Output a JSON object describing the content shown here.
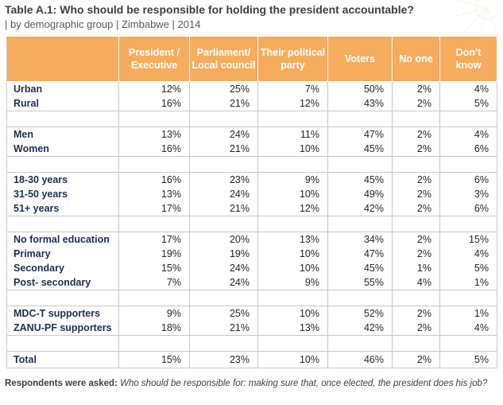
{
  "title": "Table A.1: Who should be responsible for holding the president accountable?",
  "subtitle": "| by demographic group | Zimbabwe | 2014",
  "headers": [
    "",
    "President / Executive",
    "Parliament/ Local council",
    "Their political party",
    "Voters",
    "No one",
    "Don’t know"
  ],
  "groups": [
    [
      {
        "label": "Urban",
        "values": [
          "12%",
          "25%",
          "7%",
          "50%",
          "2%",
          "4%"
        ]
      },
      {
        "label": "Rural",
        "values": [
          "16%",
          "21%",
          "12%",
          "43%",
          "2%",
          "5%"
        ]
      }
    ],
    [
      {
        "label": "Men",
        "values": [
          "13%",
          "24%",
          "11%",
          "47%",
          "2%",
          "4%"
        ]
      },
      {
        "label": "Women",
        "values": [
          "16%",
          "21%",
          "10%",
          "45%",
          "2%",
          "6%"
        ]
      }
    ],
    [
      {
        "label": "18-30 years",
        "values": [
          "16%",
          "23%",
          "9%",
          "45%",
          "2%",
          "6%"
        ]
      },
      {
        "label": "31-50 years",
        "values": [
          "13%",
          "24%",
          "10%",
          "49%",
          "2%",
          "3%"
        ]
      },
      {
        "label": "51+ years",
        "values": [
          "17%",
          "21%",
          "12%",
          "42%",
          "2%",
          "6%"
        ]
      }
    ],
    [
      {
        "label": "No formal education",
        "values": [
          "17%",
          "20%",
          "13%",
          "34%",
          "2%",
          "15%"
        ]
      },
      {
        "label": "Primary",
        "values": [
          "19%",
          "19%",
          "10%",
          "47%",
          "2%",
          "4%"
        ]
      },
      {
        "label": "Secondary",
        "values": [
          "15%",
          "24%",
          "10%",
          "45%",
          "1%",
          "5%"
        ]
      },
      {
        "label": "Post- secondary",
        "values": [
          "7%",
          "24%",
          "9%",
          "55%",
          "4%",
          "1%"
        ]
      }
    ],
    [
      {
        "label": "MDC-T supporters",
        "values": [
          "9%",
          "25%",
          "10%",
          "52%",
          "2%",
          "1%"
        ]
      },
      {
        "label": "ZANU-PF supporters",
        "values": [
          "18%",
          "21%",
          "13%",
          "42%",
          "2%",
          "4%"
        ]
      }
    ]
  ],
  "total": {
    "label": "Total",
    "values": [
      "15%",
      "23%",
      "10%",
      "46%",
      "2%",
      "5%"
    ]
  },
  "footnote": {
    "lead": "Respondents were asked:",
    "question": " Who should be responsible for: making sure that, once elected, the president does his job?"
  },
  "colors": {
    "header_bg": "#f5ac5d",
    "header_text": "#ffffff",
    "label_text": "#1f2f4f",
    "grid": "#c8c8c8"
  }
}
